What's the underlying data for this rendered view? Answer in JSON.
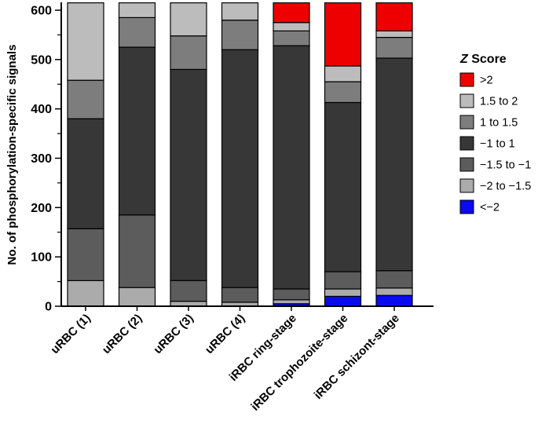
{
  "axes": {
    "ylabel": "No. of phosphorylation-specific signals"
  },
  "legend": {
    "title_z": "Z",
    "title_rest": " Score"
  },
  "chart_data": {
    "type": "bar",
    "subtype": "stacked-bar",
    "title": "",
    "xlabel": "",
    "ylabel": "No. of phosphorylation-specific signals",
    "ylim": [
      0,
      600
    ],
    "yticks_major": [
      0,
      100,
      200,
      300,
      400,
      500,
      600
    ],
    "yticks_minor": [
      50,
      150,
      250,
      350,
      450,
      550
    ],
    "grid": "off",
    "bar_total_per_category": 615,
    "categories": [
      "uRBC (1)",
      "uRBC (2)",
      "uRBC (3)",
      "uRBC (4)",
      "iRBC ring-stage",
      "iRBC trophozoite-stage",
      "iRBC schizont-stage"
    ],
    "stack_order": "series listed bottom-to-top",
    "series": [
      {
        "name": "<−2",
        "color": "#0a0af0",
        "values": [
          0,
          0,
          0,
          0,
          5,
          20,
          22
        ]
      },
      {
        "name": "−2 to −1.5",
        "color": "#ababab",
        "values": [
          52,
          38,
          10,
          8,
          8,
          15,
          15
        ]
      },
      {
        "name": "−1.5 to −1",
        "color": "#5c5c5c",
        "values": [
          105,
          147,
          42,
          30,
          22,
          35,
          35
        ]
      },
      {
        "name": "−1 to 1",
        "color": "#373737",
        "values": [
          223,
          340,
          428,
          482,
          493,
          343,
          431
        ]
      },
      {
        "name": "1 to 1.5",
        "color": "#7d7d7d",
        "values": [
          78,
          60,
          68,
          60,
          30,
          42,
          42
        ]
      },
      {
        "name": "1.5 to 2",
        "color": "#bcbcbc",
        "values": [
          157,
          30,
          67,
          35,
          17,
          32,
          13
        ]
      },
      {
        "name": ">2",
        "color": "#ee0000",
        "values": [
          0,
          0,
          0,
          0,
          40,
          128,
          57
        ]
      }
    ],
    "legend": {
      "title": "Z Score",
      "position": "right",
      "entries": [
        ">2",
        "1.5 to 2",
        "1 to 1.5",
        "−1 to 1",
        "−1.5 to −1",
        "−2 to −1.5",
        "<−2"
      ]
    }
  }
}
